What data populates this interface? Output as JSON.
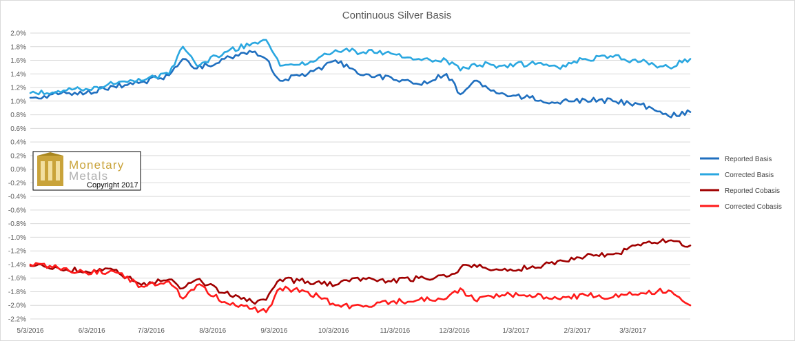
{
  "chart_data": {
    "type": "line",
    "title": "Continuous Silver Basis",
    "xlabel": "",
    "ylabel": "",
    "ylim": [
      -2.2,
      2.0
    ],
    "ytick_step": 0.2,
    "ytick_suffix": "%",
    "x_tick_labels": [
      "5/3/2016",
      "6/3/2016",
      "7/3/2016",
      "8/3/2016",
      "9/3/2016",
      "10/3/2016",
      "11/3/2016",
      "12/3/2016",
      "1/3/2017",
      "2/3/2017",
      "3/3/2017"
    ],
    "x_range": [
      "5/3/2016",
      "4/1/2017"
    ],
    "grid": "horizontal",
    "legend_position": "right",
    "x": [
      "5/3/2016",
      "5/17/2016",
      "5/31/2016",
      "6/14/2016",
      "6/28/2016",
      "7/12/2016",
      "7/19/2016",
      "7/26/2016",
      "8/9/2016",
      "8/23/2016",
      "8/30/2016",
      "9/6/2016",
      "9/20/2016",
      "10/4/2016",
      "10/18/2016",
      "11/1/2016",
      "11/15/2016",
      "11/29/2016",
      "12/6/2016",
      "12/13/2016",
      "12/27/2016",
      "1/10/2017",
      "1/24/2017",
      "2/7/2017",
      "2/21/2017",
      "3/7/2017",
      "3/21/2017",
      "4/1/2017"
    ],
    "series": [
      {
        "name": "Reported Basis",
        "color": "#1f6fbf",
        "values": [
          1.05,
          1.1,
          1.12,
          1.22,
          1.28,
          1.38,
          1.62,
          1.48,
          1.62,
          1.72,
          1.62,
          1.3,
          1.4,
          1.6,
          1.38,
          1.35,
          1.25,
          1.4,
          1.1,
          1.3,
          1.12,
          1.05,
          0.98,
          1.02,
          1.0,
          0.95,
          0.78,
          0.84
        ]
      },
      {
        "name": "Corrected Basis",
        "color": "#2aa7e0",
        "values": [
          1.12,
          1.15,
          1.18,
          1.25,
          1.3,
          1.4,
          1.8,
          1.52,
          1.72,
          1.85,
          1.9,
          1.52,
          1.55,
          1.75,
          1.72,
          1.7,
          1.62,
          1.6,
          1.45,
          1.55,
          1.52,
          1.55,
          1.5,
          1.62,
          1.65,
          1.58,
          1.5,
          1.62
        ]
      },
      {
        "name": "Reported Cobasis",
        "color": "#a00000",
        "values": [
          -1.42,
          -1.45,
          -1.5,
          -1.48,
          -1.7,
          -1.62,
          -1.75,
          -1.62,
          -1.82,
          -1.95,
          -1.92,
          -1.62,
          -1.65,
          -1.7,
          -1.6,
          -1.65,
          -1.6,
          -1.58,
          -1.45,
          -1.4,
          -1.48,
          -1.45,
          -1.35,
          -1.28,
          -1.25,
          -1.12,
          -1.05,
          -1.12
        ]
      },
      {
        "name": "Corrected Cobasis",
        "color": "#ff1a1a",
        "values": [
          -1.4,
          -1.45,
          -1.52,
          -1.5,
          -1.72,
          -1.65,
          -1.9,
          -1.7,
          -1.95,
          -2.05,
          -2.1,
          -1.75,
          -1.8,
          -2.0,
          -2.02,
          -1.95,
          -1.92,
          -1.9,
          -1.75,
          -1.92,
          -1.85,
          -1.85,
          -1.9,
          -1.85,
          -1.88,
          -1.82,
          -1.78,
          -2.0
        ]
      }
    ]
  },
  "watermark": {
    "brand_line1": "Monetary",
    "brand_line2": "Metals",
    "copyright": "Copyright 2017",
    "logo_color": "#c9a33a"
  }
}
